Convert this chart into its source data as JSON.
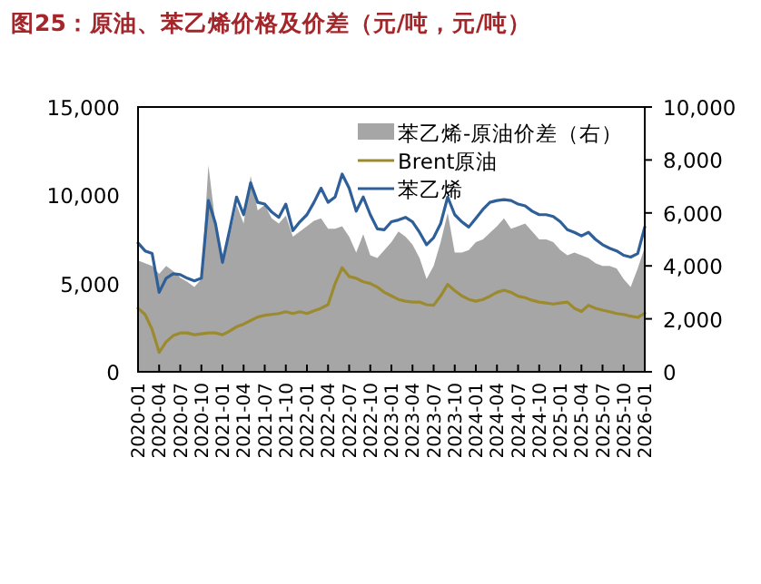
{
  "chart_data": {
    "type": "line",
    "title": "图25：原油、苯乙烯价格及价差（元/吨，元/吨）",
    "x": [
      "2020-01",
      "2020-02",
      "2020-03",
      "2020-04",
      "2020-05",
      "2020-06",
      "2020-07",
      "2020-08",
      "2020-09",
      "2020-10",
      "2020-11",
      "2020-12",
      "2021-01",
      "2021-02",
      "2021-03",
      "2021-04",
      "2021-05",
      "2021-06",
      "2021-07",
      "2021-08",
      "2021-09",
      "2021-10",
      "2021-11",
      "2021-12",
      "2022-01",
      "2022-02",
      "2022-03",
      "2022-04",
      "2022-05",
      "2022-06",
      "2022-07",
      "2022-08",
      "2022-09",
      "2022-10",
      "2022-11",
      "2022-12",
      "2023-01",
      "2023-02",
      "2023-03",
      "2023-04",
      "2023-05",
      "2023-06",
      "2023-07",
      "2023-08",
      "2023-09",
      "2023-10",
      "2023-11",
      "2023-12",
      "2024-01",
      "2024-02",
      "2024-03",
      "2024-04",
      "2024-05",
      "2024-06",
      "2024-07",
      "2024-08",
      "2024-09",
      "2024-10",
      "2024-11",
      "2024-12",
      "2025-01",
      "2025-02",
      "2025-03",
      "2025-04",
      "2025-05",
      "2025-06",
      "2025-07",
      "2025-08",
      "2025-09",
      "2025-10",
      "2025-11",
      "2025-12",
      "2026-01"
    ],
    "series": [
      {
        "name": "苯乙烯-原油价差（右）",
        "type": "area",
        "axis": "y2",
        "color": "#a6a6a6",
        "values": [
          4200,
          4100,
          4000,
          3700,
          4000,
          3800,
          3550,
          3400,
          3200,
          3500,
          7800,
          5600,
          4400,
          5100,
          6300,
          5600,
          7400,
          6100,
          6300,
          5800,
          5600,
          5900,
          5100,
          5300,
          5500,
          5700,
          5800,
          5400,
          5400,
          5500,
          5100,
          4500,
          5200,
          4400,
          4300,
          4600,
          4900,
          5300,
          5100,
          4800,
          4300,
          3500,
          4000,
          4900,
          6000,
          4500,
          4500,
          4600,
          4900,
          5000,
          5250,
          5500,
          5800,
          5400,
          5500,
          5600,
          5300,
          5000,
          5000,
          4900,
          4600,
          4400,
          4500,
          4400,
          4300,
          4100,
          4000,
          4000,
          3900,
          3500,
          3200,
          3900,
          4700
        ]
      },
      {
        "name": "Brent原油",
        "color": "#9c8a2e",
        "values": [
          3600,
          3250,
          2400,
          1100,
          1700,
          2050,
          2200,
          2200,
          2100,
          2150,
          2200,
          2200,
          2100,
          2300,
          2550,
          2700,
          2900,
          3100,
          3200,
          3250,
          3300,
          3400,
          3300,
          3400,
          3300,
          3450,
          3600,
          3800,
          5000,
          5900,
          5400,
          5300,
          5100,
          5000,
          4800,
          4500,
          4300,
          4100,
          4000,
          3950,
          3950,
          3800,
          3770,
          4300,
          4950,
          4600,
          4300,
          4100,
          4000,
          4100,
          4280,
          4500,
          4620,
          4500,
          4280,
          4200,
          4050,
          3950,
          3900,
          3840,
          3900,
          3950,
          3600,
          3420,
          3770,
          3600,
          3490,
          3400,
          3300,
          3250,
          3150,
          3080,
          3320
        ]
      },
      {
        "name": "苯乙烯",
        "color": "#2f5f98",
        "values": [
          7300,
          6850,
          6700,
          4500,
          5300,
          5550,
          5500,
          5300,
          5150,
          5300,
          9700,
          8400,
          6200,
          8000,
          9900,
          8900,
          10700,
          9600,
          9500,
          9050,
          8750,
          9500,
          8000,
          8500,
          8900,
          9600,
          10400,
          9600,
          9900,
          11200,
          10400,
          9100,
          9900,
          8900,
          8100,
          8050,
          8500,
          8600,
          8750,
          8500,
          7900,
          7200,
          7600,
          8400,
          9900,
          8900,
          8500,
          8200,
          8700,
          9200,
          9600,
          9700,
          9750,
          9700,
          9500,
          9400,
          9100,
          8900,
          8900,
          8800,
          8500,
          8050,
          7900,
          7700,
          7900,
          7500,
          7200,
          7000,
          6850,
          6600,
          6500,
          6700,
          8200
        ]
      }
    ],
    "xlim": [
      "2020-01",
      "2026-01"
    ],
    "xticks": [
      "2020-01",
      "2020-04",
      "2020-07",
      "2020-10",
      "2021-01",
      "2021-04",
      "2021-07",
      "2021-10",
      "2022-01",
      "2022-04",
      "2022-07",
      "2022-10",
      "2023-01",
      "2023-04",
      "2023-07",
      "2023-10",
      "2024-01",
      "2024-04",
      "2024-07",
      "2024-10",
      "2025-01",
      "2025-04",
      "2025-07",
      "2025-10",
      "2026-01"
    ],
    "ylim": [
      0,
      15000
    ],
    "yticks": [
      0,
      {
        "value": 5000,
        "label": "5,000"
      },
      {
        "value": 10000,
        "label": "10,000"
      },
      {
        "value": 15000,
        "label": "15,000"
      }
    ],
    "y2lim": [
      0,
      10000
    ],
    "y2ticks": [
      0,
      {
        "value": 2000,
        "label": "2,000"
      },
      {
        "value": 4000,
        "label": "4,000"
      },
      {
        "value": 6000,
        "label": "6,000"
      },
      {
        "value": 8000,
        "label": "8,000"
      },
      {
        "value": 10000,
        "label": "10,000"
      }
    ],
    "legend": "top right",
    "grid": false
  }
}
